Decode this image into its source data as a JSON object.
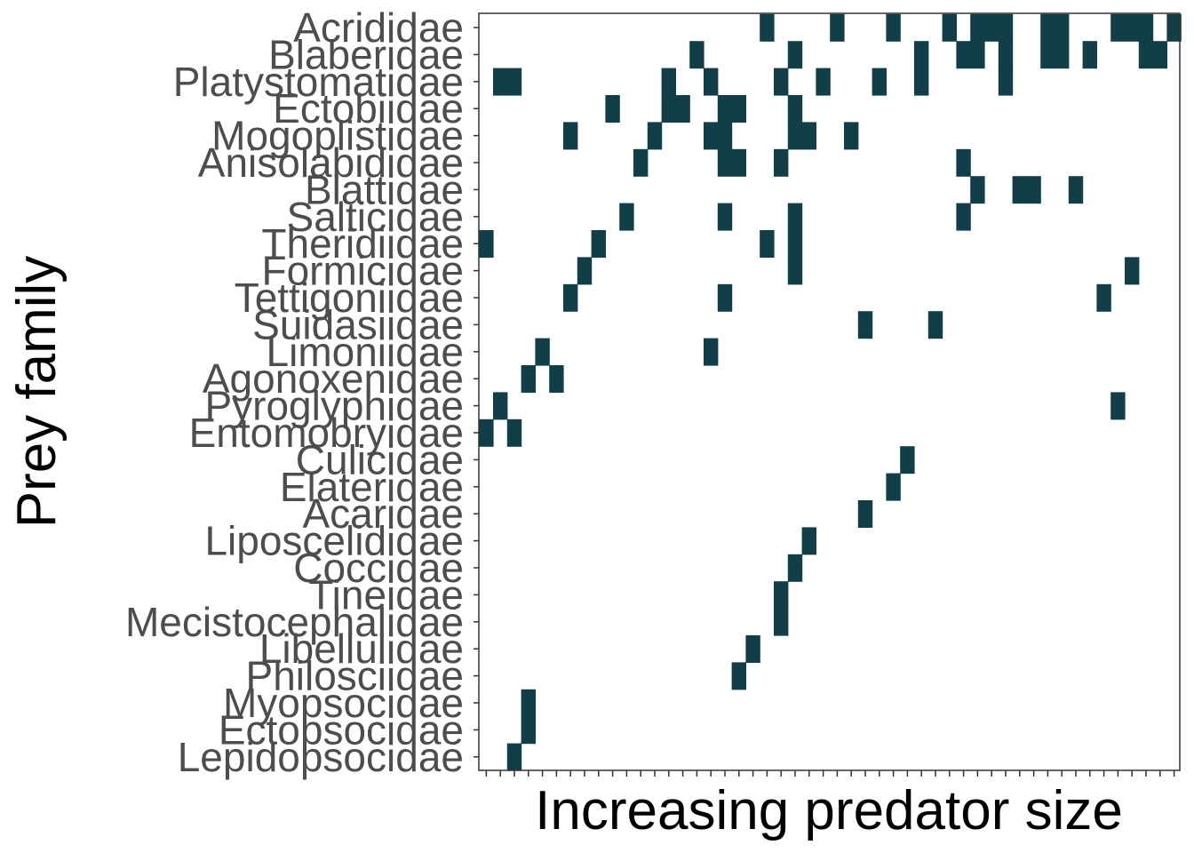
{
  "chart_data": {
    "type": "heatmap",
    "title": "",
    "xlabel": "Increasing predator size",
    "ylabel": "Prey family",
    "n_columns": 50,
    "grid": false,
    "fill_color": "#123f47",
    "background_color": "#ffffff",
    "prey_families": [
      "Acrididae",
      "Blaberidae",
      "Platystomatidae",
      "Ectobiidae",
      "Mogoplistidae",
      "Anisolabididae",
      "Blattidae",
      "Salticidae",
      "Theridiidae",
      "Formicidae",
      "Tettigoniidae",
      "Suidasiidae",
      "Limoniidae",
      "Agonoxenidae",
      "Pyroglyphidae",
      "Entomobryidae",
      "Culicidae",
      "Elateridae",
      "Acaridae",
      "Liposcelididae",
      "Coccidae",
      "Tineidae",
      "Mecistocephalidae",
      "Libellulidae",
      "Philosciidae",
      "Myopsocidae",
      "Ectopsocidae",
      "Lepidopsocidae"
    ],
    "presence": [
      {
        "prey": "Acrididae",
        "predators": [
          20,
          25,
          29,
          33,
          35,
          36,
          37,
          40,
          41,
          45,
          46,
          47,
          49
        ]
      },
      {
        "prey": "Blaberidae",
        "predators": [
          15,
          22,
          31,
          34,
          35,
          37,
          40,
          41,
          43,
          47,
          48
        ]
      },
      {
        "prey": "Platystomatidae",
        "predators": [
          1,
          2,
          13,
          16,
          21,
          24,
          28,
          31,
          37
        ]
      },
      {
        "prey": "Ectobiidae",
        "predators": [
          9,
          13,
          14,
          17,
          18,
          22
        ]
      },
      {
        "prey": "Mogoplistidae",
        "predators": [
          6,
          12,
          16,
          17,
          22,
          23,
          26
        ]
      },
      {
        "prey": "Anisolabididae",
        "predators": [
          11,
          17,
          18,
          21,
          34
        ]
      },
      {
        "prey": "Blattidae",
        "predators": [
          35,
          38,
          39,
          42
        ]
      },
      {
        "prey": "Salticidae",
        "predators": [
          10,
          17,
          22,
          34
        ]
      },
      {
        "prey": "Theridiidae",
        "predators": [
          0,
          8,
          20,
          22
        ]
      },
      {
        "prey": "Formicidae",
        "predators": [
          7,
          22,
          46
        ]
      },
      {
        "prey": "Tettigoniidae",
        "predators": [
          6,
          17,
          44
        ]
      },
      {
        "prey": "Suidasiidae",
        "predators": [
          27,
          32
        ]
      },
      {
        "prey": "Limoniidae",
        "predators": [
          4,
          16
        ]
      },
      {
        "prey": "Agonoxenidae",
        "predators": [
          3,
          5
        ]
      },
      {
        "prey": "Pyroglyphidae",
        "predators": [
          1,
          45
        ]
      },
      {
        "prey": "Entomobryidae",
        "predators": [
          0,
          2
        ]
      },
      {
        "prey": "Culicidae",
        "predators": [
          30
        ]
      },
      {
        "prey": "Elateridae",
        "predators": [
          29
        ]
      },
      {
        "prey": "Acaridae",
        "predators": [
          27
        ]
      },
      {
        "prey": "Liposcelididae",
        "predators": [
          23
        ]
      },
      {
        "prey": "Coccidae",
        "predators": [
          22
        ]
      },
      {
        "prey": "Tineidae",
        "predators": [
          21
        ]
      },
      {
        "prey": "Mecistocephalidae",
        "predators": [
          21
        ]
      },
      {
        "prey": "Libellulidae",
        "predators": [
          19
        ]
      },
      {
        "prey": "Philosciidae",
        "predators": [
          18
        ]
      },
      {
        "prey": "Myopsocidae",
        "predators": [
          3
        ]
      },
      {
        "prey": "Ectopsocidae",
        "predators": [
          3
        ]
      },
      {
        "prey": "Lepidopsocidae",
        "predators": [
          2
        ]
      }
    ]
  }
}
